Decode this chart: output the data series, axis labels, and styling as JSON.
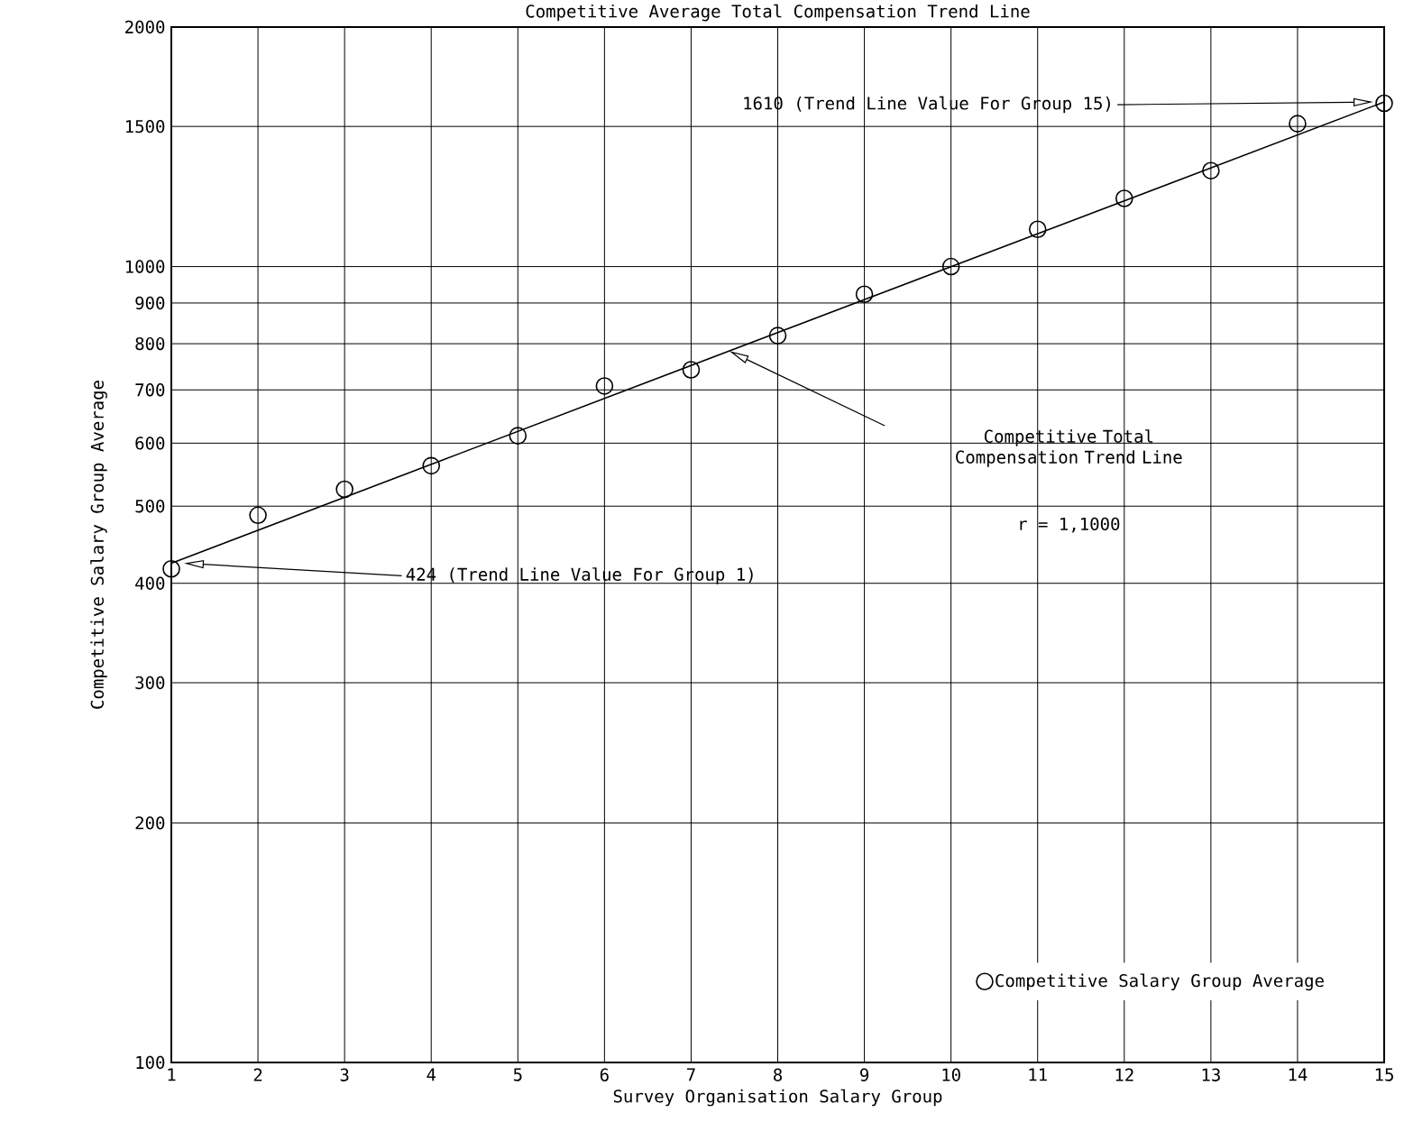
{
  "chart_data": {
    "type": "scatter",
    "title": "Competitive Average Total Compensation Trend Line",
    "xlabel": "Survey Organisation Salary Group",
    "ylabel": "Competitive Salary Group Average",
    "series": [
      {
        "name": "Competitive Salary Group Average",
        "marker": "circle",
        "color": "#000000",
        "x": [
          1,
          2,
          3,
          4,
          5,
          6,
          7,
          8,
          9,
          10,
          11,
          12,
          13,
          14,
          15
        ],
        "values": [
          417,
          487,
          525,
          562,
          613,
          708,
          742,
          819,
          923,
          1000,
          1114,
          1218,
          1320,
          1512,
          1604
        ]
      },
      {
        "type": "line",
        "marker": "none",
        "line_style": "solid",
        "color": "#000000",
        "x": [
          1,
          15
        ],
        "values": [
          424,
          1610
        ]
      }
    ],
    "xlim": [
      1,
      15
    ],
    "xticks": [
      1,
      2,
      3,
      4,
      5,
      6,
      7,
      8,
      9,
      10,
      11,
      12,
      13,
      14,
      15
    ],
    "ylim": [
      100,
      2000
    ],
    "yticks": [
      100,
      200,
      300,
      400,
      500,
      600,
      700,
      800,
      900,
      1000,
      1500,
      2000
    ],
    "log": "y",
    "grid": true,
    "legend": "bottom right",
    "annotations": [
      "1610 (Trend Line Value For Group 15)",
      "424 (Trend Line Value For Group 1)",
      "Competitive Total Compensation Trend Line",
      "r = 1,1000"
    ]
  }
}
